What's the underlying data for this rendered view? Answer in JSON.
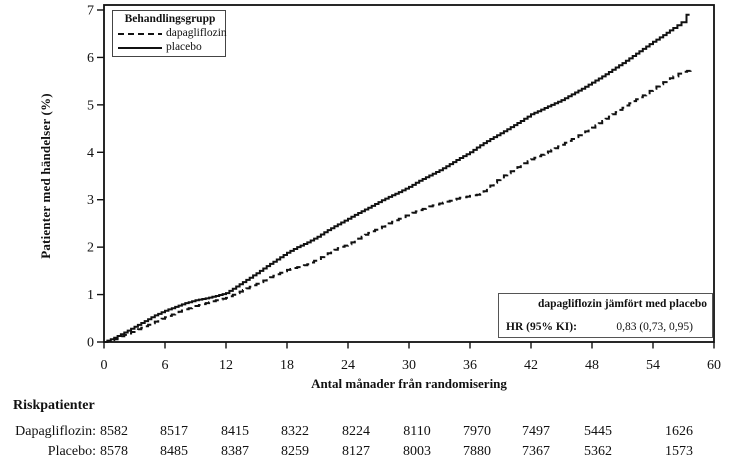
{
  "chart_data": {
    "type": "line",
    "title": "",
    "xlabel": "Antal månader från randomisering",
    "ylabel": "Patienter med händelser (%)",
    "xlim": [
      0,
      60
    ],
    "ylim": [
      0,
      7
    ],
    "xticks": [
      0,
      6,
      12,
      18,
      24,
      30,
      36,
      42,
      48,
      54,
      60
    ],
    "yticks": [
      0,
      1,
      2,
      3,
      4,
      5,
      6,
      7
    ],
    "grid": false,
    "legend": {
      "title": "Behandlingsgrupp",
      "position": "top-left-inside",
      "entries": [
        {
          "label": "dapagliflozin",
          "style": "dashed"
        },
        {
          "label": "placebo",
          "style": "solid"
        }
      ]
    },
    "annotation": {
      "header": "dapagliflozin jämfört med placebo",
      "label": "HR (95% KI):",
      "value": "0,83 (0,73, 0,95)"
    },
    "line_color": "#111111",
    "series": [
      {
        "name": "placebo",
        "style": "solid",
        "points": [
          [
            0,
            0
          ],
          [
            1,
            0.09
          ],
          [
            2,
            0.2
          ],
          [
            3,
            0.32
          ],
          [
            4,
            0.44
          ],
          [
            5,
            0.56
          ],
          [
            6,
            0.66
          ],
          [
            7,
            0.74
          ],
          [
            8,
            0.82
          ],
          [
            9,
            0.88
          ],
          [
            10,
            0.92
          ],
          [
            11,
            0.97
          ],
          [
            12,
            1.03
          ],
          [
            13,
            1.17
          ],
          [
            14,
            1.31
          ],
          [
            15,
            1.45
          ],
          [
            16,
            1.6
          ],
          [
            17,
            1.74
          ],
          [
            18,
            1.88
          ],
          [
            19,
            2.0
          ],
          [
            20,
            2.1
          ],
          [
            21,
            2.22
          ],
          [
            22,
            2.36
          ],
          [
            23,
            2.48
          ],
          [
            24,
            2.6
          ],
          [
            25,
            2.72
          ],
          [
            26,
            2.83
          ],
          [
            27,
            2.95
          ],
          [
            28,
            3.06
          ],
          [
            29,
            3.16
          ],
          [
            30,
            3.27
          ],
          [
            31,
            3.4
          ],
          [
            32,
            3.51
          ],
          [
            33,
            3.62
          ],
          [
            34,
            3.75
          ],
          [
            35,
            3.88
          ],
          [
            36,
            4.0
          ],
          [
            37,
            4.15
          ],
          [
            38,
            4.28
          ],
          [
            39,
            4.4
          ],
          [
            40,
            4.53
          ],
          [
            41,
            4.66
          ],
          [
            42,
            4.8
          ],
          [
            43,
            4.9
          ],
          [
            44,
            5.0
          ],
          [
            45,
            5.1
          ],
          [
            46,
            5.22
          ],
          [
            47,
            5.34
          ],
          [
            48,
            5.47
          ],
          [
            49,
            5.6
          ],
          [
            50,
            5.74
          ],
          [
            51,
            5.88
          ],
          [
            52,
            6.03
          ],
          [
            53,
            6.18
          ],
          [
            54,
            6.33
          ],
          [
            55,
            6.47
          ],
          [
            56,
            6.62
          ],
          [
            56.8,
            6.74
          ],
          [
            57.2,
            6.74
          ],
          [
            57.3,
            6.9
          ],
          [
            57.6,
            6.9
          ]
        ]
      },
      {
        "name": "dapagliflozin",
        "style": "dashed",
        "points": [
          [
            0,
            0
          ],
          [
            1,
            0.06
          ],
          [
            2,
            0.15
          ],
          [
            3,
            0.24
          ],
          [
            4,
            0.33
          ],
          [
            5,
            0.43
          ],
          [
            6,
            0.52
          ],
          [
            7,
            0.61
          ],
          [
            8,
            0.69
          ],
          [
            9,
            0.76
          ],
          [
            10,
            0.82
          ],
          [
            11,
            0.88
          ],
          [
            12,
            0.93
          ],
          [
            13,
            1.03
          ],
          [
            14,
            1.13
          ],
          [
            15,
            1.23
          ],
          [
            16,
            1.33
          ],
          [
            17,
            1.43
          ],
          [
            18,
            1.52
          ],
          [
            19,
            1.58
          ],
          [
            20,
            1.64
          ],
          [
            21,
            1.75
          ],
          [
            22,
            1.87
          ],
          [
            23,
            1.98
          ],
          [
            24,
            2.06
          ],
          [
            25,
            2.18
          ],
          [
            26,
            2.3
          ],
          [
            27,
            2.4
          ],
          [
            28,
            2.5
          ],
          [
            29,
            2.6
          ],
          [
            30,
            2.7
          ],
          [
            31,
            2.78
          ],
          [
            32,
            2.86
          ],
          [
            33,
            2.92
          ],
          [
            34,
            2.98
          ],
          [
            35,
            3.04
          ],
          [
            36,
            3.08
          ],
          [
            37,
            3.12
          ],
          [
            38,
            3.3
          ],
          [
            39,
            3.47
          ],
          [
            40,
            3.6
          ],
          [
            41,
            3.73
          ],
          [
            42,
            3.85
          ],
          [
            43,
            3.95
          ],
          [
            44,
            4.05
          ],
          [
            45,
            4.16
          ],
          [
            46,
            4.28
          ],
          [
            47,
            4.4
          ],
          [
            48,
            4.52
          ],
          [
            49,
            4.66
          ],
          [
            50,
            4.8
          ],
          [
            51,
            4.94
          ],
          [
            52,
            5.08
          ],
          [
            53,
            5.2
          ],
          [
            54,
            5.34
          ],
          [
            55,
            5.48
          ],
          [
            56,
            5.6
          ],
          [
            56.5,
            5.66
          ],
          [
            57,
            5.7
          ],
          [
            57.7,
            5.73
          ]
        ]
      }
    ]
  },
  "risk_table": {
    "title": "Riskpatienter",
    "months": [
      0,
      6,
      12,
      18,
      24,
      30,
      36,
      42,
      48,
      54
    ],
    "rows": [
      {
        "label": "Dapagliflozin:",
        "values": [
          "8582",
          "8517",
          "8415",
          "8322",
          "8224",
          "8110",
          "7970",
          "7497",
          "5445",
          "1626"
        ]
      },
      {
        "label": "Placebo:",
        "values": [
          "8578",
          "8485",
          "8387",
          "8259",
          "8127",
          "8003",
          "7880",
          "7367",
          "5362",
          "1573"
        ]
      }
    ]
  }
}
